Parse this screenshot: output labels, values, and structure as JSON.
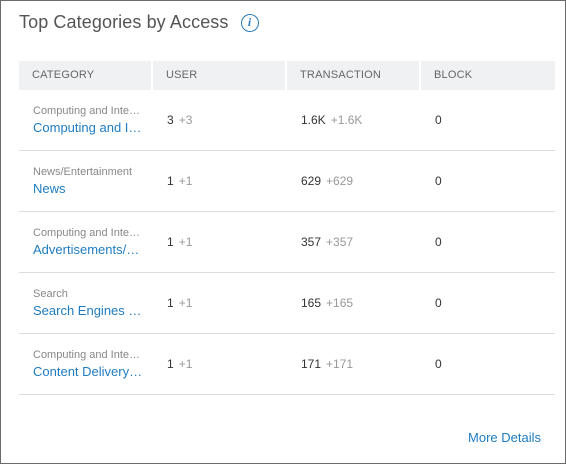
{
  "widget": {
    "title": "Top Categories by Access",
    "info_icon": "i",
    "more_details": "More Details"
  },
  "table": {
    "headers": [
      "CATEGORY",
      "USER",
      "TRANSACTION",
      "BLOCK"
    ],
    "rows": [
      {
        "parent": "Computing and Internet",
        "name": "Computing and Internet",
        "user": "3",
        "user_delta": "+3",
        "transaction": "1.6K",
        "transaction_delta": "+1.6K",
        "block": "0"
      },
      {
        "parent": "News/Entertainment",
        "name": "News",
        "user": "1",
        "user_delta": "+1",
        "transaction": "629",
        "transaction_delta": "+629",
        "block": "0"
      },
      {
        "parent": "Computing and Internet",
        "name": "Advertisements/Popups",
        "user": "1",
        "user_delta": "+1",
        "transaction": "357",
        "transaction_delta": "+357",
        "block": "0"
      },
      {
        "parent": "Search",
        "name": "Search Engines and Portals",
        "user": "1",
        "user_delta": "+1",
        "transaction": "165",
        "transaction_delta": "+165",
        "block": "0"
      },
      {
        "parent": "Computing and Internet",
        "name": "Content Delivery Networks",
        "user": "1",
        "user_delta": "+1",
        "transaction": "171",
        "transaction_delta": "+171",
        "block": "0"
      }
    ]
  }
}
